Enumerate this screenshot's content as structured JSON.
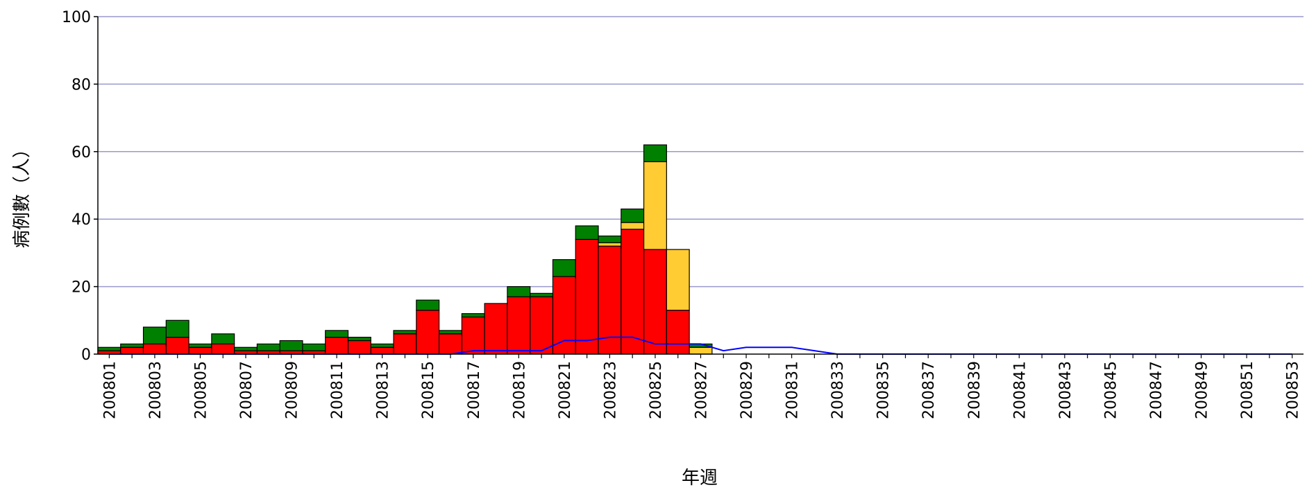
{
  "chart_data": {
    "type": "bar",
    "stacked": true,
    "xlabel": "年週",
    "ylabel": "病例數（人）",
    "ylim": [
      0,
      100
    ],
    "yticks": [
      0,
      20,
      40,
      60,
      80,
      100
    ],
    "grid": true,
    "legend": "none",
    "categories": [
      "200801",
      "200802",
      "200803",
      "200804",
      "200805",
      "200806",
      "200807",
      "200808",
      "200809",
      "200810",
      "200811",
      "200812",
      "200813",
      "200814",
      "200815",
      "200816",
      "200817",
      "200818",
      "200819",
      "200820",
      "200821",
      "200822",
      "200823",
      "200824",
      "200825",
      "200826",
      "200827",
      "200828",
      "200829",
      "200830",
      "200831",
      "200832",
      "200833",
      "200834",
      "200835",
      "200836",
      "200837",
      "200838",
      "200839",
      "200840",
      "200841",
      "200842",
      "200843",
      "200844",
      "200845",
      "200846",
      "200847",
      "200848",
      "200849",
      "200850",
      "200851",
      "200852",
      "200853"
    ],
    "tick_labels": [
      "200801",
      "200803",
      "200805",
      "200807",
      "200809",
      "200811",
      "200813",
      "200815",
      "200817",
      "200819",
      "200821",
      "200823",
      "200825",
      "200827",
      "200829",
      "200831",
      "200833",
      "200835",
      "200837",
      "200839",
      "200841",
      "200843",
      "200845",
      "200847",
      "200849",
      "200851",
      "200853"
    ],
    "series": [
      {
        "color": "#ff0000",
        "values": [
          1,
          2,
          3,
          5,
          2,
          3,
          1,
          1,
          1,
          1,
          5,
          4,
          2,
          6,
          13,
          6,
          11,
          15,
          17,
          17,
          23,
          34,
          32,
          37,
          31,
          13,
          0,
          0,
          0,
          0,
          0,
          0,
          0,
          0,
          0,
          0,
          0,
          0,
          0,
          0,
          0,
          0,
          0,
          0,
          0,
          0,
          0,
          0,
          0,
          0,
          0,
          0,
          0
        ]
      },
      {
        "color": "#ffcc33",
        "values": [
          0,
          0,
          0,
          0,
          0,
          0,
          0,
          0,
          0,
          0,
          0,
          0,
          0,
          0,
          0,
          0,
          0,
          0,
          0,
          0,
          0,
          0,
          1,
          2,
          26,
          18,
          2,
          0,
          0,
          0,
          0,
          0,
          0,
          0,
          0,
          0,
          0,
          0,
          0,
          0,
          0,
          0,
          0,
          0,
          0,
          0,
          0,
          0,
          0,
          0,
          0,
          0,
          0
        ]
      },
      {
        "color": "#008000",
        "values": [
          1,
          1,
          5,
          5,
          1,
          3,
          1,
          2,
          3,
          2,
          2,
          1,
          1,
          1,
          3,
          1,
          1,
          0,
          3,
          1,
          5,
          4,
          2,
          4,
          5,
          0,
          1,
          0,
          0,
          0,
          0,
          0,
          0,
          0,
          0,
          0,
          0,
          0,
          0,
          0,
          0,
          0,
          0,
          0,
          0,
          0,
          0,
          0,
          0,
          0,
          0,
          0,
          0
        ]
      }
    ],
    "line": {
      "type": "line",
      "color": "#0000ff",
      "values": [
        0,
        0,
        0,
        0,
        0,
        0,
        0,
        0,
        0,
        0,
        0,
        0,
        0,
        0,
        0,
        0,
        1,
        1,
        1,
        1,
        4,
        4,
        5,
        5,
        3,
        3,
        3,
        1,
        2,
        2,
        2,
        1,
        0,
        0,
        0,
        0,
        0,
        0,
        0,
        0,
        0,
        0,
        0,
        0,
        0,
        0,
        0,
        0,
        0,
        0,
        0,
        0,
        0
      ]
    }
  }
}
